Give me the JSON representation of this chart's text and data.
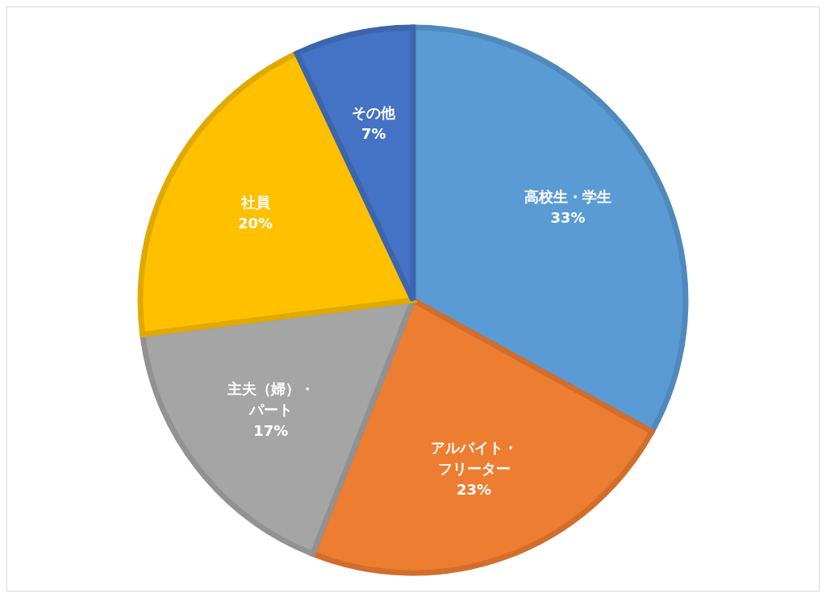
{
  "chart_data": {
    "type": "pie",
    "categories": [
      "高校生・学生",
      "アルバイト・フリーター",
      "主夫（婦）・パート",
      "社員",
      "その他"
    ],
    "values": [
      33,
      23,
      17,
      20,
      7
    ],
    "colors": [
      "#5b9bd5",
      "#ed7d31",
      "#a5a5a5",
      "#ffc000",
      "#4472c4"
    ],
    "value_labels": [
      "33%",
      "23%",
      "17%",
      "20%",
      "7%"
    ]
  }
}
